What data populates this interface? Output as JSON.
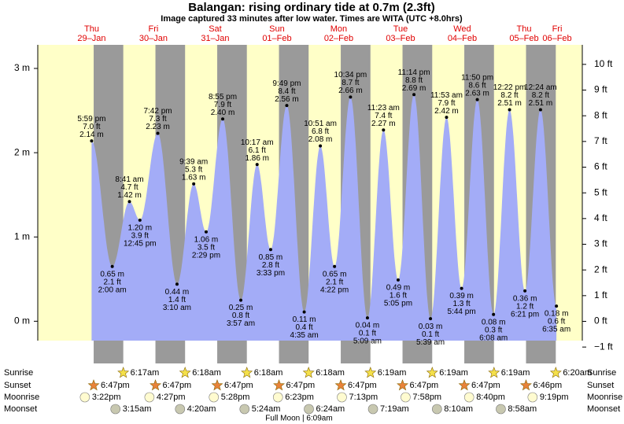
{
  "chart_data": {
    "type": "tide",
    "title": "Balangan: rising  ordinary tide at 0.7m (2.3ft)",
    "subtitle": "Image captured 33 minutes after low water. Times are WITA (UTC +8.0hrs)",
    "days": [
      {
        "weekday": "Thu",
        "date": "29–Jan"
      },
      {
        "weekday": "Fri",
        "date": "30–Jan"
      },
      {
        "weekday": "Sat",
        "date": "31–Jan"
      },
      {
        "weekday": "Sun",
        "date": "01–Feb"
      },
      {
        "weekday": "Mon",
        "date": "02–Feb"
      },
      {
        "weekday": "Tue",
        "date": "03–Feb"
      },
      {
        "weekday": "Wed",
        "date": "04–Feb"
      },
      {
        "weekday": "Thu",
        "date": "05–Feb"
      },
      {
        "weekday": "Fri",
        "date": "06–Feb"
      }
    ],
    "tides": {
      "times": [
        "5:59 pm",
        "2:00 am",
        "8:41 am",
        "12:45 pm",
        "7:42 pm",
        "3:10 am",
        "9:39 am",
        "2:29 pm",
        "8:55 pm",
        "3:57 am",
        "10:17 am",
        "3:33 pm",
        "9:49 pm",
        "4:35 am",
        "10:51 am",
        "4:22 pm",
        "10:34 pm",
        "5:09 am",
        "11:23 am",
        "5:05 pm",
        "11:14 pm",
        "5:39 am",
        "11:53 am",
        "5:44 pm",
        "11:50 pm",
        "6:08 am",
        "12:22 pm",
        "6:21 pm",
        "12:24 am",
        "6:35 am"
      ],
      "values": [
        2.14,
        0.65,
        1.42,
        1.2,
        2.23,
        0.44,
        1.63,
        1.06,
        2.4,
        0.25,
        1.86,
        0.85,
        2.56,
        0.11,
        2.08,
        0.65,
        2.66,
        0.04,
        2.27,
        0.49,
        2.69,
        0.03,
        2.42,
        0.39,
        2.63,
        0.08,
        2.51,
        0.36,
        2.51,
        0.18
      ],
      "value_labels": [
        "2.14 m",
        "0.65 m",
        "1.42 m",
        "1.20 m",
        "2.23 m",
        "0.44 m",
        "1.63 m",
        "1.06 m",
        "2.40 m",
        "0.25 m",
        "1.86 m",
        "0.85 m",
        "2.56 m",
        "0.11 m",
        "2.08 m",
        "0.65 m",
        "2.66 m",
        "0.04 m",
        "2.27 m",
        "0.49 m",
        "2.69 m",
        "0.03 m",
        "2.42 m",
        "0.39 m",
        "2.63 m",
        "0.08 m",
        "2.51 m",
        "0.36 m",
        "2.51 m",
        "0.18 m"
      ],
      "feet_labels": [
        "7.0 ft",
        "2.1 ft",
        "4.7 ft",
        "3.9 ft",
        "7.3 ft",
        "1.4 ft",
        "5.3 ft",
        "3.5 ft",
        "7.9 ft",
        "0.8 ft",
        "6.1 ft",
        "2.8 ft",
        "8.4 ft",
        "0.4 ft",
        "6.8 ft",
        "2.1 ft",
        "8.7 ft",
        "0.1 ft",
        "7.4 ft",
        "1.6 ft",
        "8.8 ft",
        "0.1 ft",
        "7.9 ft",
        "1.3 ft",
        "8.6 ft",
        "0.3 ft",
        "8.2 ft",
        "1.2 ft",
        "8.2 ft",
        "0.6 ft"
      ]
    },
    "color": "#a3acf7",
    "ylim": [
      -0.23,
      3.28
    ],
    "yticks": [
      {
        "value": 0,
        "label": "0 m"
      },
      {
        "value": 1,
        "label": "1 m"
      },
      {
        "value": 2,
        "label": "2 m"
      },
      {
        "value": 3,
        "label": "3 m"
      }
    ],
    "y2lim": [
      -0.75,
      10.76
    ],
    "y2ticks": [
      {
        "value": -1,
        "label": "−1 ft"
      },
      {
        "value": 0,
        "label": "0 ft"
      },
      {
        "value": 1,
        "label": "1 ft"
      },
      {
        "value": 2,
        "label": "2 ft"
      },
      {
        "value": 3,
        "label": "3 ft"
      },
      {
        "value": 4,
        "label": "4 ft"
      },
      {
        "value": 5,
        "label": "5 ft"
      },
      {
        "value": 6,
        "label": "6 ft"
      },
      {
        "value": 7,
        "label": "7 ft"
      },
      {
        "value": 8,
        "label": "8 ft"
      },
      {
        "value": 9,
        "label": "9 ft"
      },
      {
        "value": 10,
        "label": "10 ft"
      }
    ],
    "rows": [
      {
        "name": "Sunrise",
        "times": [
          "6:17am",
          "6:18am",
          "6:18am",
          "6:18am",
          "6:19am",
          "6:19am",
          "6:19am",
          "6:20am"
        ]
      },
      {
        "name": "Sunset",
        "times": [
          "6:47pm",
          "6:47pm",
          "6:47pm",
          "6:47pm",
          "6:47pm",
          "6:47pm",
          "6:47pm",
          "6:46pm"
        ]
      },
      {
        "name": "Moonrise",
        "times": [
          "3:22pm",
          "4:27pm",
          "5:28pm",
          "6:23pm",
          "7:13pm",
          "7:58pm",
          "8:40pm",
          "9:19pm"
        ]
      },
      {
        "name": "Moonset",
        "times": [
          "3:15am",
          "4:20am",
          "5:24am",
          "6:24am",
          "7:19am",
          "8:10am",
          "8:58am"
        ]
      }
    ],
    "moon_phase": "Full Moon | 6:09am"
  }
}
